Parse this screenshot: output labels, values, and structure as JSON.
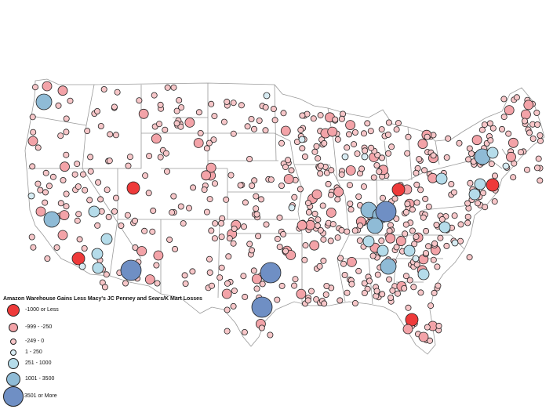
{
  "legend": {
    "title": "Amazon Warehouse Gains Less Macy's JC Penney and Sears/K Mart Losses",
    "items": [
      {
        "label": "-1000 or Less",
        "color": "#ee3a3a",
        "category": "strong-loss"
      },
      {
        "label": "-999 - -250",
        "color": "#f3a3a8",
        "category": "loss"
      },
      {
        "label": "-249 - 0",
        "color": "#f7c6c8",
        "category": "small-loss"
      },
      {
        "label": "1 - 250",
        "color": "#d8ecf3",
        "category": "small-gain"
      },
      {
        "label": "251 - 1000",
        "color": "#b5dcea",
        "category": "gain"
      },
      {
        "label": "1001 - 3500",
        "color": "#8fbbd6",
        "category": "big-gain"
      },
      {
        "label": "3501 or More",
        "color": "#6f8fc4",
        "category": "huge-gain"
      }
    ]
  },
  "map": {
    "region": "contiguous United States",
    "outline_color": "#9a9a9a",
    "marker_outline": "#222222"
  }
}
